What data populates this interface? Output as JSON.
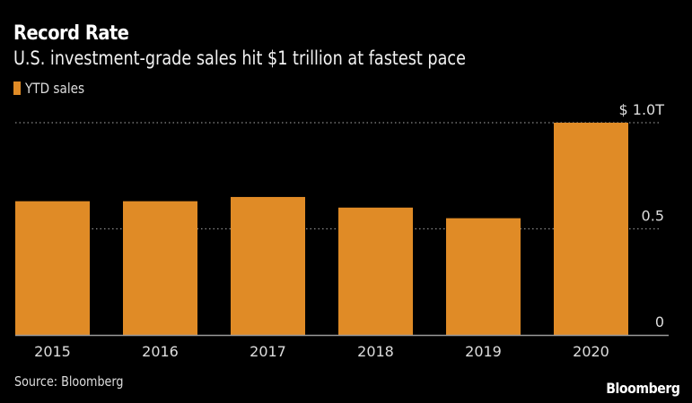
{
  "header": {
    "title": "Record Rate",
    "subtitle": "U.S. investment-grade sales hit $1 trillion at fastest pace"
  },
  "footer": {
    "source": "Source: Bloomberg",
    "logo": "Bloomberg"
  },
  "colors": {
    "background": "#000000",
    "bar": "#e08b26",
    "grid": "#8a8a8a",
    "axis": "#9a9a9a",
    "text": "#dddddd"
  },
  "chart_data": {
    "type": "bar",
    "title": "Record Rate",
    "subtitle": "U.S. investment-grade sales hit $1 trillion at fastest pace",
    "categories": [
      "2015",
      "2016",
      "2017",
      "2018",
      "2019",
      "2020"
    ],
    "series": [
      {
        "name": "YTD sales",
        "values": [
          0.63,
          0.63,
          0.65,
          0.6,
          0.55,
          1.0
        ]
      }
    ],
    "xlabel": "",
    "ylabel": "",
    "ylim": [
      0,
      1.0
    ],
    "yticks": [
      0,
      0.5,
      1.0
    ],
    "ytick_labels": [
      "0",
      "0.5",
      "$ 1.0T"
    ],
    "y_axis_side": "right",
    "grid": true,
    "grid_style": "dotted",
    "legend": {
      "entries": [
        "YTD sales"
      ],
      "placement": "top-left"
    }
  }
}
